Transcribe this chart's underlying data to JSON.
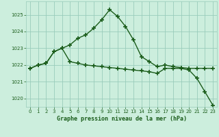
{
  "title": "Graphe pression niveau de la mer (hPa)",
  "bg_color": "#cceedd",
  "grid_color": "#99ccbb",
  "line_color": "#1a5c1a",
  "line1_x": [
    0,
    1,
    2,
    3,
    4,
    5,
    6,
    7,
    8,
    9,
    10,
    11,
    12,
    13,
    14,
    15,
    16,
    17,
    18,
    19,
    20,
    21,
    22,
    23
  ],
  "line1_y": [
    1021.8,
    1022.0,
    1022.1,
    1022.8,
    1023.0,
    1023.2,
    1023.6,
    1023.8,
    1024.2,
    1024.7,
    1025.3,
    1024.9,
    1024.3,
    1023.5,
    1022.5,
    1022.2,
    1021.9,
    1022.0,
    1021.9,
    1021.85,
    1021.8,
    1021.8,
    1021.8,
    1021.8
  ],
  "line2_x": [
    0,
    1,
    2,
    3,
    4,
    5,
    6,
    7,
    8,
    9,
    10,
    11,
    12,
    13,
    14,
    15,
    16,
    17,
    18,
    19,
    20,
    21,
    22,
    23
  ],
  "line2_y": [
    1021.8,
    1022.0,
    1022.1,
    1022.8,
    1023.0,
    1022.2,
    1022.1,
    1022.0,
    1021.95,
    1021.9,
    1021.85,
    1021.8,
    1021.75,
    1021.7,
    1021.65,
    1021.6,
    1021.5,
    1021.8,
    1021.8,
    1021.8,
    1021.7,
    1021.2,
    1020.4,
    1019.6
  ],
  "ylim": [
    1019.5,
    1025.8
  ],
  "yticks": [
    1020,
    1021,
    1022,
    1023,
    1024,
    1025
  ],
  "xlim": [
    -0.5,
    23.5
  ],
  "xticks": [
    0,
    1,
    2,
    3,
    4,
    5,
    6,
    7,
    8,
    9,
    10,
    11,
    12,
    13,
    14,
    15,
    16,
    17,
    18,
    19,
    20,
    21,
    22,
    23
  ],
  "marker": "+",
  "markersize": 4,
  "markeredgewidth": 1.2,
  "linewidth": 1.0,
  "xlabel_fontsize": 6,
  "tick_fontsize": 5
}
